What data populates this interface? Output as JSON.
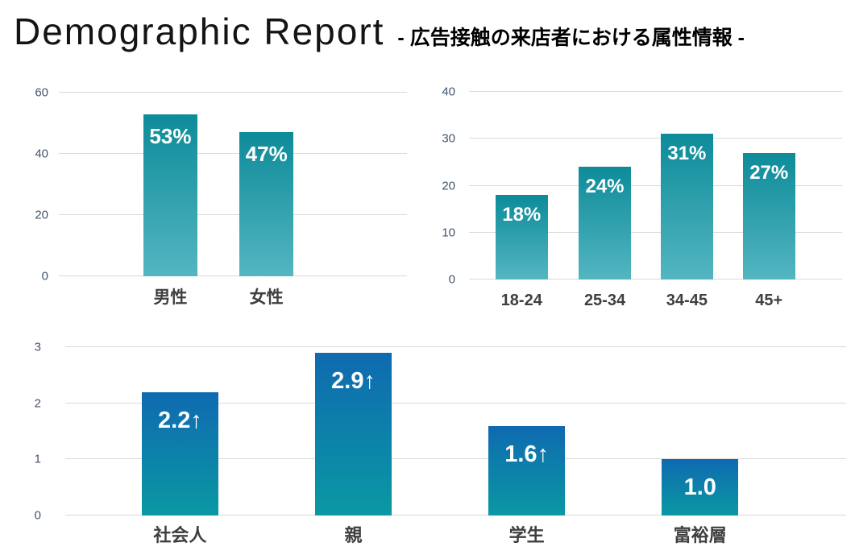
{
  "header": {
    "title": "Demographic Report",
    "subtitle": "- 広告接触の来店者における属性情報 -"
  },
  "colors": {
    "teal_gradient_top": "#0d8b99",
    "teal_gradient_bottom": "#53b6c1",
    "blue_gradient_top": "#0f6ab0",
    "blue_gradient_bottom": "#0a98a3",
    "gridline": "#d9d9d9",
    "axis_tick_text": "#44546a",
    "category_text": "#3f3f3f",
    "bar_label_text": "#ffffff"
  },
  "chart_data": [
    {
      "type": "bar",
      "name": "gender",
      "categories": [
        "男性",
        "女性"
      ],
      "values": [
        53,
        47
      ],
      "bar_labels": [
        "53%",
        "47%"
      ],
      "ylim": [
        0,
        60
      ],
      "yticks": [
        0,
        20,
        40,
        60
      ],
      "grid": true,
      "legend": false,
      "bar_color_top": "#0d8b99",
      "bar_color_bottom": "#53b6c1"
    },
    {
      "type": "bar",
      "name": "age",
      "categories": [
        "18-24",
        "25-34",
        "34-45",
        "45+"
      ],
      "values": [
        18,
        24,
        31,
        27
      ],
      "bar_labels": [
        "18%",
        "24%",
        "31%",
        "27%"
      ],
      "ylim": [
        0,
        40
      ],
      "yticks": [
        0,
        10,
        20,
        30,
        40
      ],
      "grid": true,
      "legend": false,
      "bar_color_top": "#0d8b99",
      "bar_color_bottom": "#53b6c1"
    },
    {
      "type": "bar",
      "name": "visitor-segment-lift",
      "categories": [
        "社会人",
        "親",
        "学生",
        "富裕層"
      ],
      "values": [
        2.2,
        2.9,
        1.6,
        1.0
      ],
      "bar_labels": [
        "2.2↑",
        "2.9↑",
        "1.6↑",
        "1.0"
      ],
      "ylim": [
        0,
        3
      ],
      "yticks": [
        0,
        1,
        2,
        3
      ],
      "grid": true,
      "legend": false,
      "bar_color_top": "#0f6ab0",
      "bar_color_bottom": "#0a98a3"
    }
  ]
}
